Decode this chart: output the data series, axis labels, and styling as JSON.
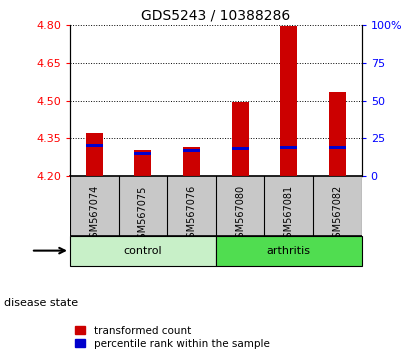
{
  "title": "GDS5243 / 10388286",
  "samples": [
    "GSM567074",
    "GSM567075",
    "GSM567076",
    "GSM567080",
    "GSM567081",
    "GSM567082"
  ],
  "groups": [
    "control",
    "control",
    "control",
    "arthritis",
    "arthritis",
    "arthritis"
  ],
  "transformed_counts": [
    4.37,
    4.305,
    4.315,
    4.495,
    4.795,
    4.535
  ],
  "percentile_ranks": [
    20,
    15,
    17,
    18,
    19,
    19
  ],
  "bar_bottom": 4.2,
  "ylim": [
    4.2,
    4.8
  ],
  "yticks": [
    4.2,
    4.35,
    4.5,
    4.65,
    4.8
  ],
  "y2ticks": [
    0,
    25,
    50,
    75,
    100
  ],
  "y2lim": [
    0,
    100
  ],
  "bar_color": "#cc0000",
  "percentile_color": "#0000cc",
  "control_color": "#c8f0c8",
  "arthritis_color": "#50dd50",
  "sample_bg_color": "#c8c8c8",
  "bar_width": 0.35,
  "legend_labels": [
    "transformed count",
    "percentile rank within the sample"
  ],
  "disease_state_label": "disease state"
}
